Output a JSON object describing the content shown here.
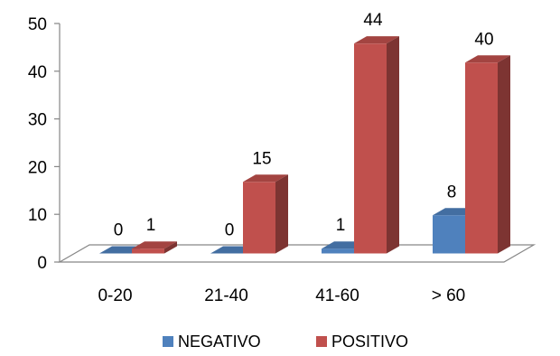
{
  "chart_data": {
    "type": "bar",
    "title": "",
    "xlabel": "",
    "ylabel": "",
    "categories": [
      "0-20",
      "21-40",
      "41-60",
      "> 60"
    ],
    "series": [
      {
        "name": "NEGATIVO",
        "values": [
          0,
          0,
          1,
          8
        ],
        "color": "#4f81bd"
      },
      {
        "name": "POSITIVO",
        "values": [
          1,
          15,
          44,
          40
        ],
        "color": "#c0504d"
      }
    ],
    "ylim": [
      0,
      50
    ],
    "yticks": [
      0,
      10,
      20,
      30,
      40,
      50
    ],
    "grid": false,
    "legend": "bottom",
    "style": "3d-clustered-column"
  }
}
